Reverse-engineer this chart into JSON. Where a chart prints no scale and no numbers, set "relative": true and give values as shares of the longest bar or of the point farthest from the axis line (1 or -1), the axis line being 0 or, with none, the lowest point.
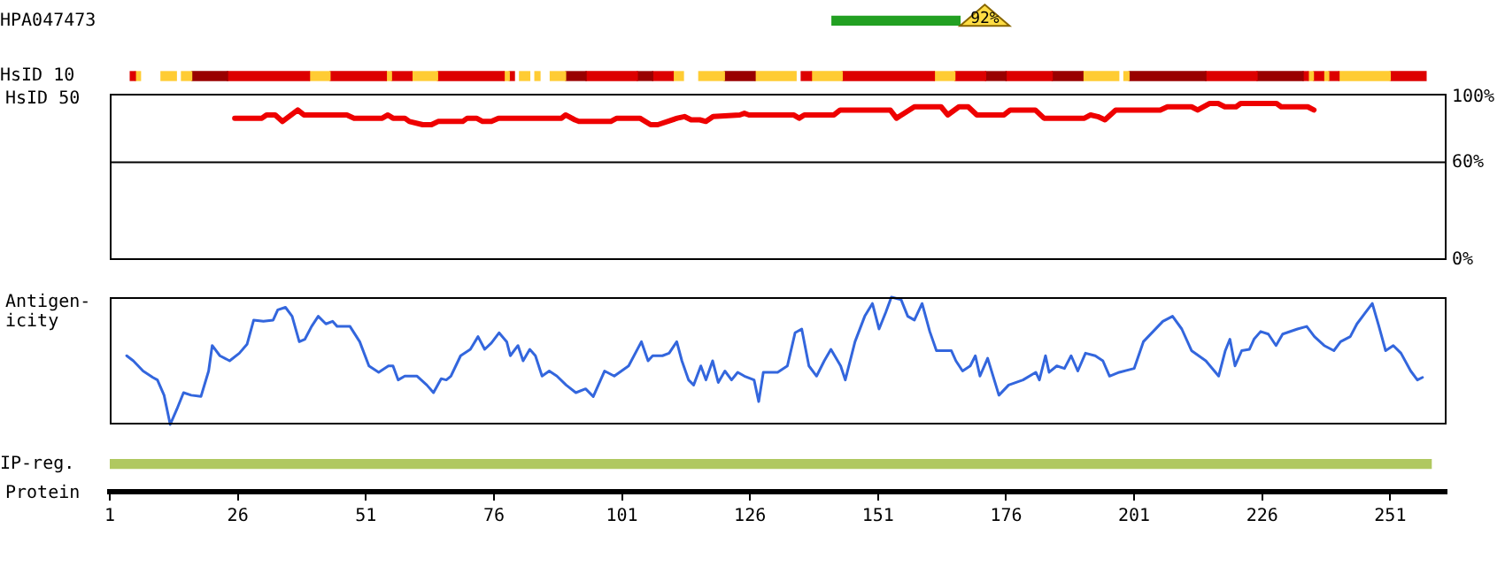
{
  "chart_data": [
    {
      "type": "bar",
      "orientation": "horizontal",
      "categories": [
        "HPA047473",
        "HsID 10",
        null,
        null,
        null,
        null,
        null,
        null,
        "IP-reg."
      ],
      "xlabel": "Protein",
      "xlim": [
        1,
        262
      ],
      "xticks": [
        1,
        26,
        51,
        76,
        101,
        126,
        151,
        176,
        201,
        226,
        251
      ],
      "annotations": [
        "92%"
      ],
      "series": [
        {
          "color": "#22a022",
          "base": [
            142,
            null,
            null,
            null,
            null,
            null,
            null,
            null,
            null
          ],
          "values": [
            25,
            null,
            null,
            null,
            null,
            null,
            null,
            null,
            null
          ]
        },
        {
          "color": "#dd0000",
          "base": [
            null,
            5,
            null,
            null,
            null,
            null,
            null,
            null,
            null
          ],
          "values": [
            null,
            1,
            null,
            null,
            null,
            null,
            null,
            null,
            null
          ]
        },
        {
          "color": "#ffcc33",
          "base": [
            null,
            6,
            null,
            null,
            null,
            null,
            null,
            null,
            null
          ],
          "values": [
            null,
            1,
            null,
            null,
            null,
            null,
            null,
            null,
            null
          ]
        },
        {
          "color": "#ffcc33",
          "base": [
            null,
            11,
            null,
            null,
            null,
            null,
            null,
            null,
            null
          ],
          "values": [
            null,
            3,
            null,
            null,
            null,
            null,
            null,
            null,
            null
          ]
        },
        {
          "color": "#ffcc33",
          "base": [
            null,
            15,
            null,
            null,
            null,
            null,
            null,
            null,
            null
          ],
          "values": [
            null,
            2,
            null,
            null,
            null,
            null,
            null,
            null,
            null
          ]
        },
        {
          "color": "#990000",
          "base": [
            null,
            17,
            null,
            null,
            null,
            null,
            null,
            null,
            null
          ],
          "values": [
            null,
            7,
            null,
            null,
            null,
            null,
            null,
            null,
            null
          ]
        },
        {
          "color": "#dd0000",
          "base": [
            null,
            24,
            null,
            null,
            null,
            null,
            null,
            null,
            null
          ],
          "values": [
            null,
            16,
            null,
            null,
            null,
            null,
            null,
            null,
            null
          ]
        },
        {
          "color": "#ffcc33",
          "base": [
            null,
            40,
            null,
            null,
            null,
            null,
            null,
            null,
            null
          ],
          "values": [
            null,
            4,
            null,
            null,
            null,
            null,
            null,
            null,
            null
          ]
        },
        {
          "color": "#dd0000",
          "base": [
            null,
            44,
            null,
            null,
            null,
            null,
            null,
            null,
            null
          ],
          "values": [
            null,
            11,
            null,
            null,
            null,
            null,
            null,
            null,
            null
          ]
        },
        {
          "color": "#ffcc33",
          "base": [
            null,
            55,
            null,
            null,
            null,
            null,
            null,
            null,
            null
          ],
          "values": [
            null,
            1,
            null,
            null,
            null,
            null,
            null,
            null,
            null
          ]
        },
        {
          "color": "#dd0000",
          "base": [
            null,
            56,
            null,
            null,
            null,
            null,
            null,
            null,
            null
          ],
          "values": [
            null,
            4,
            null,
            null,
            null,
            null,
            null,
            null,
            null
          ]
        },
        {
          "color": "#ffcc33",
          "base": [
            null,
            60,
            null,
            null,
            null,
            null,
            null,
            null,
            null
          ],
          "values": [
            null,
            5,
            null,
            null,
            null,
            null,
            null,
            null,
            null
          ]
        },
        {
          "color": "#dd0000",
          "base": [
            null,
            65,
            null,
            null,
            null,
            null,
            null,
            null,
            null
          ],
          "values": [
            null,
            13,
            null,
            null,
            null,
            null,
            null,
            null,
            null
          ]
        },
        {
          "color": "#ffcc33",
          "base": [
            null,
            78,
            null,
            null,
            null,
            null,
            null,
            null,
            null
          ],
          "values": [
            null,
            1,
            null,
            null,
            null,
            null,
            null,
            null,
            null
          ]
        },
        {
          "color": "#dd0000",
          "base": [
            null,
            79,
            null,
            null,
            null,
            null,
            null,
            null,
            null
          ],
          "values": [
            null,
            1,
            null,
            null,
            null,
            null,
            null,
            null,
            null
          ]
        },
        {
          "color": "#ffcc33",
          "base": [
            null,
            81,
            null,
            null,
            null,
            null,
            null,
            null,
            null
          ],
          "values": [
            null,
            2,
            null,
            null,
            null,
            null,
            null,
            null,
            null
          ]
        },
        {
          "color": "#ffcc33",
          "base": [
            null,
            84,
            null,
            null,
            null,
            null,
            null,
            null,
            null
          ],
          "values": [
            null,
            1,
            null,
            null,
            null,
            null,
            null,
            null,
            null
          ]
        },
        {
          "color": "#ffcc33",
          "base": [
            null,
            87,
            null,
            null,
            null,
            null,
            null,
            null,
            null
          ],
          "values": [
            null,
            3,
            null,
            null,
            null,
            null,
            null,
            null,
            null
          ]
        },
        {
          "color": "#990000",
          "base": [
            null,
            90,
            null,
            null,
            null,
            null,
            null,
            null,
            null
          ],
          "values": [
            null,
            4,
            null,
            null,
            null,
            null,
            null,
            null,
            null
          ]
        },
        {
          "color": "#dd0000",
          "base": [
            null,
            94,
            null,
            null,
            null,
            null,
            null,
            null,
            null
          ],
          "values": [
            null,
            10,
            null,
            null,
            null,
            null,
            null,
            null,
            null
          ]
        },
        {
          "color": "#990000",
          "base": [
            null,
            104,
            null,
            null,
            null,
            null,
            null,
            null,
            null
          ],
          "values": [
            null,
            3,
            null,
            null,
            null,
            null,
            null,
            null,
            null
          ]
        },
        {
          "color": "#dd0000",
          "base": [
            null,
            107,
            null,
            null,
            null,
            null,
            null,
            null,
            null
          ],
          "values": [
            null,
            4,
            null,
            null,
            null,
            null,
            null,
            null,
            null
          ]
        },
        {
          "color": "#ffcc33",
          "base": [
            null,
            111,
            null,
            null,
            null,
            null,
            null,
            null,
            null
          ],
          "values": [
            null,
            2,
            null,
            null,
            null,
            null,
            null,
            null,
            null
          ]
        },
        {
          "color": "#ffcc33",
          "base": [
            null,
            116,
            null,
            null,
            null,
            null,
            null,
            null,
            null
          ],
          "values": [
            null,
            5,
            null,
            null,
            null,
            null,
            null,
            null,
            null
          ]
        },
        {
          "color": "#990000",
          "base": [
            null,
            121,
            null,
            null,
            null,
            null,
            null,
            null,
            null
          ],
          "values": [
            null,
            6,
            null,
            null,
            null,
            null,
            null,
            null,
            null
          ]
        },
        {
          "color": "#ffcc33",
          "base": [
            null,
            127,
            null,
            null,
            null,
            null,
            null,
            null,
            null
          ],
          "values": [
            null,
            8,
            null,
            null,
            null,
            null,
            null,
            null,
            null
          ]
        },
        {
          "color": "#dd0000",
          "base": [
            null,
            136,
            null,
            null,
            null,
            null,
            null,
            null,
            null
          ],
          "values": [
            null,
            2,
            null,
            null,
            null,
            null,
            null,
            null,
            null
          ]
        },
        {
          "color": "#ffcc33",
          "base": [
            null,
            138,
            null,
            null,
            null,
            null,
            null,
            null,
            null
          ],
          "values": [
            null,
            6,
            null,
            null,
            null,
            null,
            null,
            null,
            null
          ]
        },
        {
          "color": "#dd0000",
          "base": [
            null,
            144,
            null,
            null,
            null,
            null,
            null,
            null,
            null
          ],
          "values": [
            null,
            18,
            null,
            null,
            null,
            null,
            null,
            null,
            null
          ]
        },
        {
          "color": "#ffcc33",
          "base": [
            null,
            162,
            null,
            null,
            null,
            null,
            null,
            null,
            null
          ],
          "values": [
            null,
            4,
            null,
            null,
            null,
            null,
            null,
            null,
            null
          ]
        },
        {
          "color": "#dd0000",
          "base": [
            null,
            166,
            null,
            null,
            null,
            null,
            null,
            null,
            null
          ],
          "values": [
            null,
            6,
            null,
            null,
            null,
            null,
            null,
            null,
            null
          ]
        },
        {
          "color": "#990000",
          "base": [
            null,
            172,
            null,
            null,
            null,
            null,
            null,
            null,
            null
          ],
          "values": [
            null,
            4,
            null,
            null,
            null,
            null,
            null,
            null,
            null
          ]
        },
        {
          "color": "#dd0000",
          "base": [
            null,
            176,
            null,
            null,
            null,
            null,
            null,
            null,
            null
          ],
          "values": [
            null,
            9,
            null,
            null,
            null,
            null,
            null,
            null,
            null
          ]
        },
        {
          "color": "#990000",
          "base": [
            null,
            185,
            null,
            null,
            null,
            null,
            null,
            null,
            null
          ],
          "values": [
            null,
            6,
            null,
            null,
            null,
            null,
            null,
            null,
            null
          ]
        },
        {
          "color": "#ffcc33",
          "base": [
            null,
            191,
            null,
            null,
            null,
            null,
            null,
            null,
            null
          ],
          "values": [
            null,
            7,
            null,
            null,
            null,
            null,
            null,
            null,
            null
          ]
        },
        {
          "color": "#ffcc33",
          "base": [
            null,
            199,
            null,
            null,
            null,
            null,
            null,
            null,
            null
          ],
          "values": [
            null,
            1,
            null,
            null,
            null,
            null,
            null,
            null,
            null
          ]
        },
        {
          "color": "#990000",
          "base": [
            null,
            200,
            null,
            null,
            null,
            null,
            null,
            null,
            null
          ],
          "values": [
            null,
            15,
            null,
            null,
            null,
            null,
            null,
            null,
            null
          ]
        },
        {
          "color": "#dd0000",
          "base": [
            null,
            215,
            null,
            null,
            null,
            null,
            null,
            null,
            null
          ],
          "values": [
            null,
            10,
            null,
            null,
            null,
            null,
            null,
            null,
            null
          ]
        },
        {
          "color": "#990000",
          "base": [
            null,
            225,
            null,
            null,
            null,
            null,
            null,
            null,
            null
          ],
          "values": [
            null,
            9,
            null,
            null,
            null,
            null,
            null,
            null,
            null
          ]
        },
        {
          "color": "#dd0000",
          "base": [
            null,
            234,
            null,
            null,
            null,
            null,
            null,
            null,
            null
          ],
          "values": [
            null,
            1,
            null,
            null,
            null,
            null,
            null,
            null,
            null
          ]
        },
        {
          "color": "#ffcc33",
          "base": [
            null,
            235,
            null,
            null,
            null,
            null,
            null,
            null,
            null
          ],
          "values": [
            null,
            1,
            null,
            null,
            null,
            null,
            null,
            null,
            null
          ]
        },
        {
          "color": "#dd0000",
          "base": [
            null,
            236,
            null,
            null,
            null,
            null,
            null,
            null,
            null
          ],
          "values": [
            null,
            2,
            null,
            null,
            null,
            null,
            null,
            null,
            null
          ]
        },
        {
          "color": "#ffcc33",
          "base": [
            null,
            238,
            null,
            null,
            null,
            null,
            null,
            null,
            null
          ],
          "values": [
            null,
            1,
            null,
            null,
            null,
            null,
            null,
            null,
            null
          ]
        },
        {
          "color": "#dd0000",
          "base": [
            null,
            239,
            null,
            null,
            null,
            null,
            null,
            null,
            null
          ],
          "values": [
            null,
            2,
            null,
            null,
            null,
            null,
            null,
            null,
            null
          ]
        },
        {
          "color": "#ffcc33",
          "base": [
            null,
            241,
            null,
            null,
            null,
            null,
            null,
            null,
            null
          ],
          "values": [
            null,
            10,
            null,
            null,
            null,
            null,
            null,
            null,
            null
          ]
        },
        {
          "color": "#dd0000",
          "base": [
            null,
            251,
            null,
            null,
            null,
            null,
            null,
            null,
            null
          ],
          "values": [
            null,
            7,
            null,
            null,
            null,
            null,
            null,
            null,
            null
          ]
        },
        {
          "color": "#b0c860",
          "base": [
            null,
            null,
            null,
            null,
            null,
            null,
            null,
            null,
            1
          ],
          "values": [
            null,
            null,
            null,
            null,
            null,
            null,
            null,
            null,
            258
          ]
        }
      ]
    },
    {
      "type": "line",
      "ylabel": "HsID 50",
      "xlim": [
        1,
        262
      ],
      "ylim": [
        0,
        102
      ],
      "yticks": [
        {
          "value": 0,
          "label": "0%"
        },
        {
          "value": 60,
          "label": "60%"
        },
        {
          "value": 100,
          "label": "100%"
        }
      ],
      "tick_labels": "y",
      "ref_lines": [
        {
          "axis": "y",
          "value": 60,
          "color": "#000000"
        }
      ],
      "series": [
        {
          "color": "#ee0000",
          "x": [
            25.4,
            30.7,
            31.6,
            33.3,
            34.7,
            37.7,
            38.9,
            47.3,
            48.7,
            54.2,
            55.3,
            56.3,
            58.6,
            59.5,
            62.1,
            63.8,
            65.1,
            69.9,
            70.8,
            72.6,
            73.8,
            75.5,
            76.9,
            89.2,
            90,
            91.8,
            92.6,
            98.8,
            100,
            104.5,
            106.6,
            108,
            111.8,
            113.2,
            114.5,
            116.2,
            117.4,
            118.8,
            124,
            124.9,
            125.8,
            134.5,
            135.6,
            136.6,
            142.4,
            143.6,
            153.4,
            154.6,
            158.1,
            163.3,
            164.6,
            166.8,
            168.6,
            170.3,
            175.6,
            176.8,
            181.7,
            183.4,
            191.3,
            192.5,
            193.9,
            195.3,
            197.4,
            206.1,
            207.5,
            212.2,
            213.4,
            215.7,
            217.4,
            218.7,
            220.9,
            221.8,
            228.8,
            229.7,
            234.9,
            236.1
          ],
          "values": [
            87,
            87,
            89,
            89,
            85,
            92,
            89,
            89,
            87,
            87,
            89,
            87,
            87,
            85,
            83,
            83,
            85,
            85,
            87,
            87,
            85,
            85,
            87,
            87,
            89,
            86,
            85,
            85,
            87,
            87,
            83,
            83,
            87,
            88,
            86,
            86,
            85,
            88,
            89,
            90,
            89,
            89,
            87,
            89,
            89,
            92,
            92,
            87,
            94,
            94,
            89,
            94,
            94,
            89,
            89,
            92,
            92,
            87,
            87,
            89,
            88,
            86,
            92,
            92,
            94,
            94,
            92,
            96,
            96,
            94,
            94,
            96,
            96,
            94,
            94,
            92
          ]
        }
      ]
    },
    {
      "type": "line",
      "ylabel": "Antigen-\nicity",
      "relative": true,
      "xlim": [
        1,
        262
      ],
      "tick_labels": false,
      "series": [
        {
          "color": "#3366dd",
          "x": [
            4.3,
            5.6,
            7.5,
            9.4,
            10.3,
            11.6,
            12.8,
            14.1,
            15.4,
            16.9,
            18.8,
            20.3,
            21,
            22.5,
            24.4,
            26.3,
            27.8,
            29.1,
            31,
            32.9,
            33.8,
            35.3,
            36.6,
            38,
            39.1,
            40.4,
            41.7,
            43.2,
            44.5,
            45.4,
            47.9,
            49.8,
            51.6,
            53.5,
            55.4,
            56.3,
            57.3,
            58.6,
            61,
            62.9,
            64.2,
            65.7,
            66.7,
            67.6,
            69.5,
            71.4,
            72.9,
            74.2,
            75.5,
            77,
            78.5,
            79.2,
            80.7,
            81.7,
            83,
            84.1,
            85.4,
            86.8,
            88.3,
            90.1,
            92,
            93.9,
            95.4,
            97.6,
            99.5,
            102.3,
            104.8,
            106.1,
            107,
            108.9,
            110.2,
            111.7,
            112.7,
            114,
            115,
            116.4,
            117.4,
            118.7,
            119.8,
            121.1,
            122.4,
            123.6,
            124.9,
            126.8,
            127.7,
            128.6,
            131.4,
            133.3,
            134.8,
            136.1,
            137.5,
            139,
            140.5,
            141.8,
            143.7,
            144.6,
            146.5,
            148.4,
            149.9,
            151.2,
            152.5,
            153.6,
            155.5,
            156.8,
            158.1,
            159.6,
            161.1,
            162.4,
            165.3,
            166.2,
            167.5,
            169,
            170,
            170.9,
            172.4,
            174.6,
            176.5,
            179.3,
            181.8,
            182.5,
            183.7,
            184.4,
            185.9,
            187.4,
            188.7,
            190,
            191.5,
            193.4,
            194.9,
            196.2,
            198.1,
            201,
            202.8,
            204.7,
            206.6,
            208.5,
            210.3,
            212.2,
            215,
            217.5,
            218.8,
            219.7,
            220.7,
            222,
            223.5,
            224.4,
            225.7,
            227.2,
            228.7,
            230,
            232.9,
            234.7,
            236.2,
            238.1,
            240,
            241.3,
            243.2,
            244.5,
            246,
            247.5,
            248.8,
            250.1,
            251.6,
            253.1,
            255,
            256.3,
            257.3
          ],
          "values": [
            0.54,
            0.5,
            0.42,
            0.37,
            0.35,
            0.23,
            0,
            0.12,
            0.25,
            0.23,
            0.22,
            0.42,
            0.62,
            0.54,
            0.5,
            0.56,
            0.63,
            0.82,
            0.81,
            0.82,
            0.9,
            0.92,
            0.85,
            0.65,
            0.67,
            0.77,
            0.85,
            0.79,
            0.81,
            0.77,
            0.77,
            0.65,
            0.46,
            0.41,
            0.46,
            0.46,
            0.35,
            0.38,
            0.38,
            0.31,
            0.25,
            0.36,
            0.35,
            0.38,
            0.54,
            0.59,
            0.69,
            0.59,
            0.64,
            0.72,
            0.65,
            0.54,
            0.62,
            0.5,
            0.59,
            0.54,
            0.38,
            0.42,
            0.38,
            0.31,
            0.25,
            0.28,
            0.22,
            0.42,
            0.38,
            0.46,
            0.65,
            0.5,
            0.54,
            0.54,
            0.56,
            0.65,
            0.5,
            0.35,
            0.31,
            0.46,
            0.35,
            0.5,
            0.33,
            0.42,
            0.35,
            0.41,
            0.38,
            0.35,
            0.18,
            0.41,
            0.41,
            0.46,
            0.72,
            0.75,
            0.46,
            0.38,
            0.5,
            0.59,
            0.46,
            0.35,
            0.65,
            0.85,
            0.95,
            0.75,
            0.88,
            1,
            0.98,
            0.85,
            0.82,
            0.95,
            0.73,
            0.58,
            0.58,
            0.5,
            0.42,
            0.46,
            0.54,
            0.38,
            0.52,
            0.23,
            0.31,
            0.35,
            0.41,
            0.35,
            0.54,
            0.41,
            0.46,
            0.44,
            0.54,
            0.42,
            0.56,
            0.54,
            0.5,
            0.38,
            0.41,
            0.44,
            0.65,
            0.73,
            0.81,
            0.85,
            0.75,
            0.58,
            0.5,
            0.38,
            0.58,
            0.67,
            0.46,
            0.58,
            0.59,
            0.67,
            0.73,
            0.71,
            0.62,
            0.71,
            0.75,
            0.77,
            0.69,
            0.62,
            0.58,
            0.65,
            0.69,
            0.79,
            0.87,
            0.95,
            0.77,
            0.58,
            0.62,
            0.56,
            0.42,
            0.35,
            0.37
          ]
        }
      ]
    }
  ]
}
